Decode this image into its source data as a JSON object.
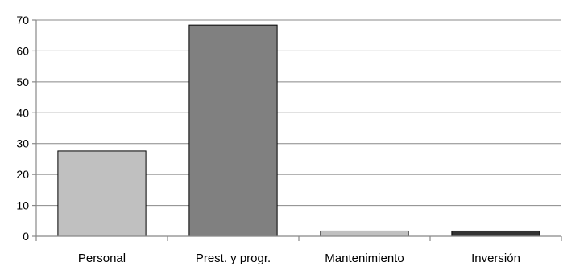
{
  "chart_data": {
    "type": "bar",
    "categories": [
      "Personal",
      "Prest. y progr.",
      "Mantenimiento",
      "Inversión"
    ],
    "values": [
      27.6,
      68.4,
      1.7,
      1.7
    ],
    "bar_colors": [
      "#c0c0c0",
      "#808080",
      "#c0c0c0",
      "#333333"
    ],
    "ylim": [
      0,
      70
    ],
    "yticks": [
      "0",
      "10",
      "20",
      "30",
      "40",
      "50",
      "60",
      "70"
    ],
    "grid": true,
    "legend": "none",
    "title": "",
    "xlabel": "",
    "ylabel": ""
  }
}
